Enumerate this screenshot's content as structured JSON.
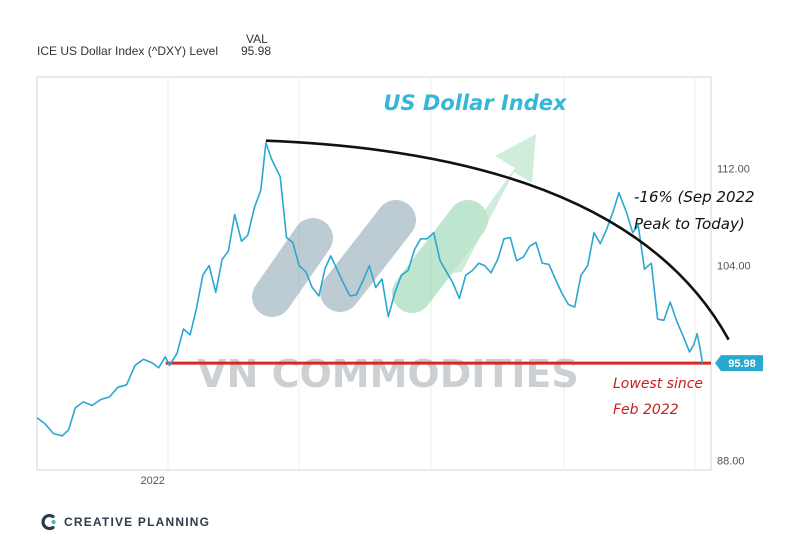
{
  "header": {
    "series_label": "ICE US Dollar Index (^DXY) Level",
    "val_heading": "VAL",
    "val_value": "95.98"
  },
  "chart_data": {
    "type": "line",
    "series": [
      {
        "name": "ICE US Dollar Index (^DXY) Level",
        "color": "#29a8d0",
        "points": [
          [
            "2021-04-01",
            91.5
          ],
          [
            "2021-04-20",
            91.0
          ],
          [
            "2021-05-10",
            90.2
          ],
          [
            "2021-05-31",
            90.0
          ],
          [
            "2021-06-15",
            90.5
          ],
          [
            "2021-07-01",
            92.3
          ],
          [
            "2021-07-20",
            92.8
          ],
          [
            "2021-08-10",
            92.5
          ],
          [
            "2021-08-31",
            93.0
          ],
          [
            "2021-09-20",
            93.2
          ],
          [
            "2021-10-10",
            94.0
          ],
          [
            "2021-10-31",
            94.2
          ],
          [
            "2021-11-20",
            95.8
          ],
          [
            "2021-12-10",
            96.3
          ],
          [
            "2021-12-31",
            96.0
          ],
          [
            "2022-01-15",
            95.6
          ],
          [
            "2022-01-31",
            96.5
          ],
          [
            "2022-02-10",
            95.8
          ],
          [
            "2022-02-28",
            96.8
          ],
          [
            "2022-03-15",
            98.8
          ],
          [
            "2022-03-31",
            98.3
          ],
          [
            "2022-04-15",
            100.5
          ],
          [
            "2022-04-30",
            103.2
          ],
          [
            "2022-05-15",
            104.0
          ],
          [
            "2022-05-31",
            101.8
          ],
          [
            "2022-06-15",
            104.5
          ],
          [
            "2022-06-30",
            105.2
          ],
          [
            "2022-07-15",
            108.2
          ],
          [
            "2022-07-31",
            106.0
          ],
          [
            "2022-08-15",
            106.5
          ],
          [
            "2022-08-31",
            108.8
          ],
          [
            "2022-09-15",
            110.2
          ],
          [
            "2022-09-27",
            114.1
          ],
          [
            "2022-10-10",
            112.8
          ],
          [
            "2022-10-31",
            111.3
          ],
          [
            "2022-11-15",
            106.3
          ],
          [
            "2022-11-30",
            105.9
          ],
          [
            "2022-12-15",
            104.0
          ],
          [
            "2022-12-31",
            103.5
          ],
          [
            "2023-01-15",
            102.2
          ],
          [
            "2023-01-31",
            101.5
          ],
          [
            "2023-02-15",
            103.8
          ],
          [
            "2023-02-28",
            104.8
          ],
          [
            "2023-03-15",
            103.7
          ],
          [
            "2023-03-31",
            102.5
          ],
          [
            "2023-04-15",
            101.5
          ],
          [
            "2023-04-30",
            101.6
          ],
          [
            "2023-05-15",
            102.7
          ],
          [
            "2023-05-31",
            104.0
          ],
          [
            "2023-06-15",
            102.2
          ],
          [
            "2023-06-30",
            102.9
          ],
          [
            "2023-07-15",
            99.8
          ],
          [
            "2023-07-31",
            101.8
          ],
          [
            "2023-08-15",
            103.2
          ],
          [
            "2023-08-31",
            103.6
          ],
          [
            "2023-09-15",
            105.3
          ],
          [
            "2023-09-30",
            106.2
          ],
          [
            "2023-10-15",
            106.2
          ],
          [
            "2023-10-31",
            106.7
          ],
          [
            "2023-11-15",
            104.4
          ],
          [
            "2023-11-30",
            103.5
          ],
          [
            "2023-12-15",
            102.6
          ],
          [
            "2023-12-31",
            101.3
          ],
          [
            "2024-01-15",
            103.2
          ],
          [
            "2024-01-31",
            103.6
          ],
          [
            "2024-02-15",
            104.2
          ],
          [
            "2024-02-29",
            104.0
          ],
          [
            "2024-03-15",
            103.4
          ],
          [
            "2024-03-31",
            104.5
          ],
          [
            "2024-04-15",
            106.2
          ],
          [
            "2024-04-30",
            106.3
          ],
          [
            "2024-05-15",
            104.4
          ],
          [
            "2024-05-31",
            104.7
          ],
          [
            "2024-06-15",
            105.6
          ],
          [
            "2024-06-30",
            105.9
          ],
          [
            "2024-07-15",
            104.2
          ],
          [
            "2024-07-31",
            104.1
          ],
          [
            "2024-08-15",
            102.9
          ],
          [
            "2024-08-31",
            101.7
          ],
          [
            "2024-09-15",
            100.8
          ],
          [
            "2024-09-30",
            100.6
          ],
          [
            "2024-10-15",
            103.2
          ],
          [
            "2024-10-31",
            104.0
          ],
          [
            "2024-11-15",
            106.7
          ],
          [
            "2024-11-30",
            105.8
          ],
          [
            "2024-12-15",
            107.0
          ],
          [
            "2024-12-31",
            108.5
          ],
          [
            "2025-01-13",
            110.0
          ],
          [
            "2025-01-31",
            108.4
          ],
          [
            "2025-02-15",
            106.7
          ],
          [
            "2025-02-28",
            107.3
          ],
          [
            "2025-03-15",
            103.7
          ],
          [
            "2025-03-31",
            104.2
          ],
          [
            "2025-04-15",
            99.6
          ],
          [
            "2025-04-30",
            99.5
          ],
          [
            "2025-05-15",
            101.0
          ],
          [
            "2025-05-31",
            99.4
          ],
          [
            "2025-06-15",
            98.2
          ],
          [
            "2025-06-30",
            96.9
          ],
          [
            "2025-07-10",
            97.5
          ],
          [
            "2025-07-18",
            98.4
          ],
          [
            "2025-07-24",
            97.4
          ],
          [
            "2025-07-31",
            95.98
          ]
        ]
      }
    ],
    "x_tick_labels": [
      "2022"
    ],
    "y_ticks": [
      88.0,
      104.0,
      112.0
    ],
    "y_tick_labels": [
      "88.00",
      "104.00",
      "112.00"
    ],
    "xlim": [
      "2021-04-01",
      "2025-08-20"
    ],
    "ylim": [
      87.2,
      119.5
    ],
    "grid": "vertical",
    "current_value_badge": "95.98",
    "title_annotation": "US Dollar Index",
    "decline_annotation": "-16% (Sep 2022 Peak to Today)",
    "decline_annotation_lines": [
      "-16% (Sep 2022",
      "Peak to Today)"
    ],
    "support_annotation_lines": [
      "Lowest since",
      "Feb 2022"
    ],
    "support_level": 95.98,
    "support_from": "2022-02-01",
    "trend_from": [
      "2022-09-27",
      114.1
    ],
    "trend_to": [
      "2025-07-31",
      96.6
    ]
  },
  "watermark": "VN COMMODITIES",
  "footer": {
    "brand": "CREATIVE PLANNING"
  },
  "colors": {
    "line": "#29a8d0",
    "support": "#dc2626",
    "trend": "#111111",
    "badge": "#29a8d0",
    "title_text": "#38b6d8",
    "annotation_red": "#c81e1e",
    "watermark": "#9aa3a9",
    "logo_green": "#7fcf9e",
    "logo_slate": "#7d9aa8"
  }
}
